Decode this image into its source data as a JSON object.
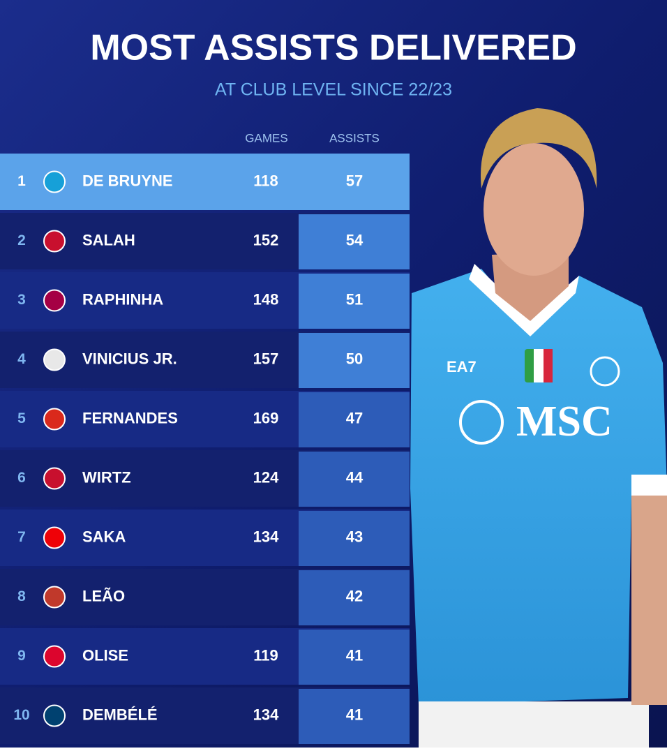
{
  "header": {
    "title": "MOST ASSISTS DELIVERED",
    "subtitle": "AT CLUB LEVEL SINCE 22/23"
  },
  "table": {
    "columns": [
      "GAMES",
      "ASSISTS"
    ],
    "rows": [
      {
        "rank": 1,
        "player": "DE BRUYNE",
        "games": 118,
        "assists": 57
      },
      {
        "rank": 2,
        "player": "SALAH",
        "games": 152,
        "assists": 54
      },
      {
        "rank": 3,
        "player": "RAPHINHA",
        "games": 148,
        "assists": 51
      },
      {
        "rank": 4,
        "player": "VINICIUS JR.",
        "games": 157,
        "assists": 50
      },
      {
        "rank": 5,
        "player": "FERNANDES",
        "games": 169,
        "assists": 47
      },
      {
        "rank": 6,
        "player": "WIRTZ",
        "games": 124,
        "assists": 44
      },
      {
        "rank": 7,
        "player": "SAKA",
        "games": 134,
        "assists": 43
      },
      {
        "rank": 8,
        "player": "LEÃO",
        "games": null,
        "assists": 42
      },
      {
        "rank": 9,
        "player": "OLISE",
        "games": 119,
        "assists": 41
      },
      {
        "rank": 10,
        "player": "DEMBÉLÉ",
        "games": 134,
        "assists": 41
      }
    ]
  }
}
